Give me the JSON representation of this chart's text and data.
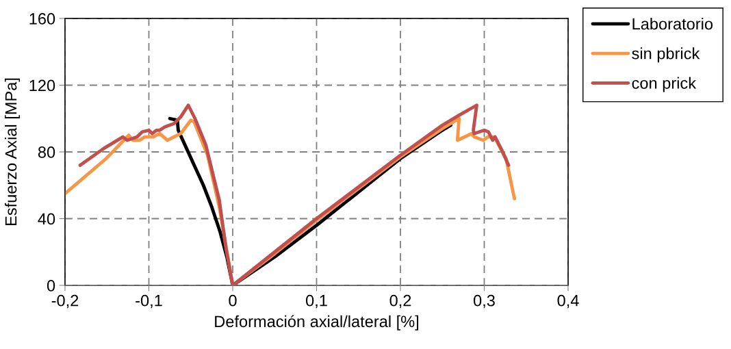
{
  "chart_data": {
    "type": "line",
    "xlabel": "Deformación axial/lateral [%]",
    "ylabel": "Esfuerzo Axial [MPa]",
    "xlim": [
      -0.2,
      0.4
    ],
    "xticks": [
      {
        "value": -0.2,
        "label": "-0,2"
      },
      {
        "value": -0.1,
        "label": "-0,1"
      },
      0,
      {
        "value": 0.1,
        "label": "0,1"
      },
      {
        "value": 0.2,
        "label": "0,2"
      },
      {
        "value": 0.3,
        "label": "0,3"
      },
      {
        "value": 0.4,
        "label": "0,4"
      }
    ],
    "ylim": [
      0,
      160
    ],
    "yticks": [
      0,
      40,
      80,
      120,
      160
    ],
    "grid": true,
    "legend": "top right",
    "line_style": "solid",
    "marker": "none",
    "series": [
      {
        "name": "Laboratorio",
        "color": "#000000",
        "x": [
          -0.075,
          -0.066,
          -0.065,
          -0.055,
          -0.045,
          -0.035,
          -0.025,
          -0.015,
          -0.007,
          0,
          0.05,
          0.1,
          0.15,
          0.2,
          0.25,
          0.26
        ],
        "values": [
          100,
          99,
          93,
          82,
          71,
          60,
          47,
          32,
          17,
          0,
          17,
          36,
          56,
          76,
          93,
          96
        ]
      },
      {
        "name": "sin pbrick",
        "color": "#f79646",
        "x": [
          -0.2,
          -0.151,
          -0.124,
          -0.119,
          -0.111,
          -0.105,
          -0.095,
          -0.087,
          -0.078,
          -0.062,
          -0.05,
          -0.046,
          -0.03,
          -0.016,
          0,
          0.05,
          0.1,
          0.15,
          0.2,
          0.25,
          0.27,
          0.268,
          0.285,
          0.288,
          0.299,
          0.304,
          0.312,
          0.326,
          0.336
        ],
        "values": [
          55,
          76,
          90,
          87,
          87,
          89,
          89,
          91,
          87,
          91,
          99,
          98,
          78,
          47,
          0,
          19,
          39,
          58,
          77,
          94,
          100,
          87,
          91,
          89,
          87,
          89,
          89,
          76,
          52
        ]
      },
      {
        "name": "con prick",
        "color": "#c0504d",
        "x": [
          -0.182,
          -0.154,
          -0.131,
          -0.126,
          -0.114,
          -0.108,
          -0.1,
          -0.096,
          -0.091,
          -0.087,
          -0.081,
          -0.07,
          -0.062,
          -0.053,
          -0.045,
          -0.032,
          -0.016,
          -0.008,
          0,
          0.05,
          0.1,
          0.15,
          0.2,
          0.25,
          0.27,
          0.291,
          0.287,
          0.288,
          0.3,
          0.305,
          0.31,
          0.313,
          0.321,
          0.329
        ],
        "values": [
          72,
          82,
          89,
          87,
          89,
          92,
          93,
          91,
          93,
          93,
          95,
          97,
          101,
          108,
          100,
          84,
          51,
          22,
          0,
          20,
          40,
          59,
          78,
          96,
          102,
          108,
          93,
          91,
          93,
          92,
          87,
          89,
          81,
          72
        ]
      }
    ]
  }
}
